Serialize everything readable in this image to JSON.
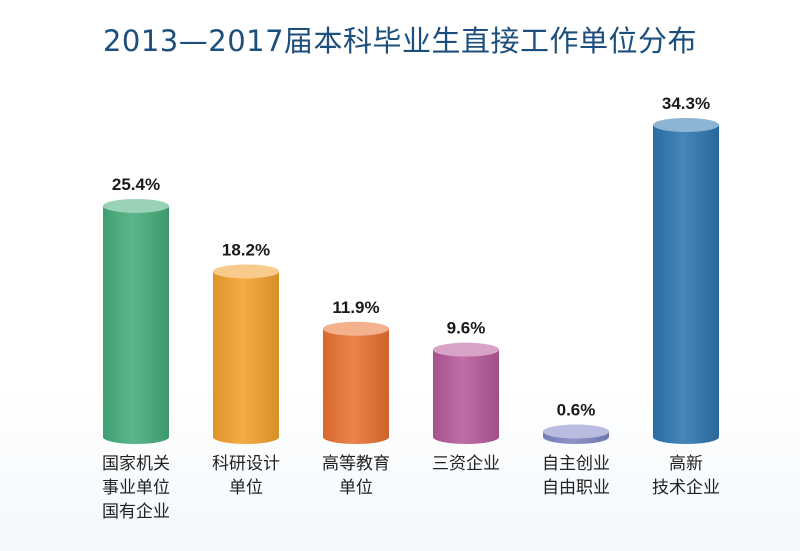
{
  "chart_data": {
    "type": "bar",
    "title": "2013—2017届本科毕业生直接工作单位分布",
    "categories": [
      [
        "国家机关",
        "事业单位",
        "国有企业"
      ],
      [
        "科研设计",
        "单位"
      ],
      [
        "高等教育",
        "单位"
      ],
      [
        "三资企业"
      ],
      [
        "自主创业",
        "自由职业"
      ],
      [
        "高新",
        "技术企业"
      ]
    ],
    "values": [
      25.4,
      18.2,
      11.9,
      9.6,
      0.6,
      34.3
    ],
    "value_labels": [
      "25.4%",
      "18.2%",
      "11.9%",
      "9.6%",
      "0.6%",
      "34.3%"
    ],
    "colors": [
      "#45ad7b",
      "#f2a12e",
      "#ea7232",
      "#b65a9a",
      "#7f86c3",
      "#2d76b0"
    ],
    "xlabel": "",
    "ylabel": "",
    "ylim": [
      0,
      34.3
    ],
    "grid": false,
    "legend": "none"
  }
}
